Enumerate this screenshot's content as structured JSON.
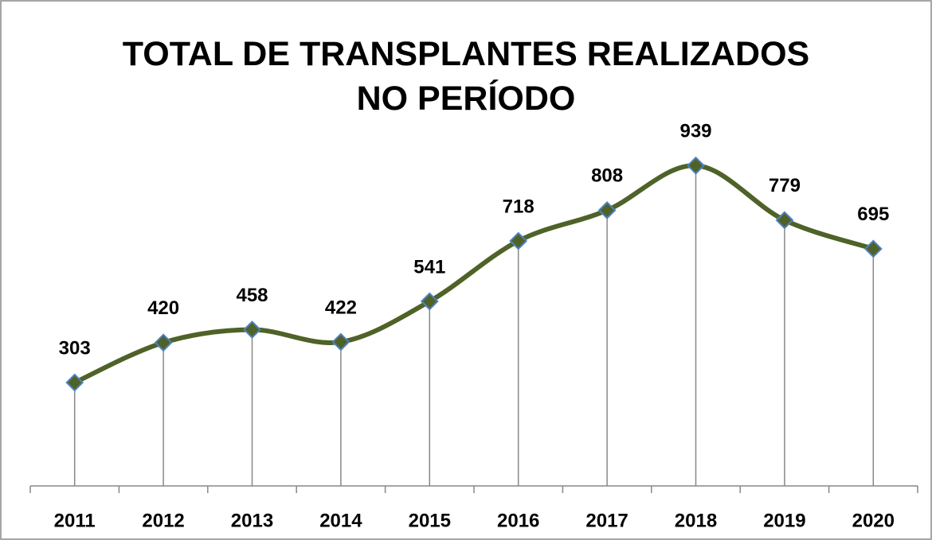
{
  "chart_data": {
    "type": "line",
    "title": "TOTAL DE TRANSPLANTES REALIZADOS NO PERÍODO",
    "categories": [
      "2011",
      "2012",
      "2013",
      "2014",
      "2015",
      "2016",
      "2017",
      "2018",
      "2019",
      "2020"
    ],
    "values": [
      303,
      420,
      458,
      422,
      541,
      718,
      808,
      939,
      779,
      695
    ],
    "color": "#4f6228",
    "marker_edge_color": "#4f81bd",
    "smooth": true,
    "drop_lines": true,
    "ylim": [
      0,
      1000
    ]
  }
}
